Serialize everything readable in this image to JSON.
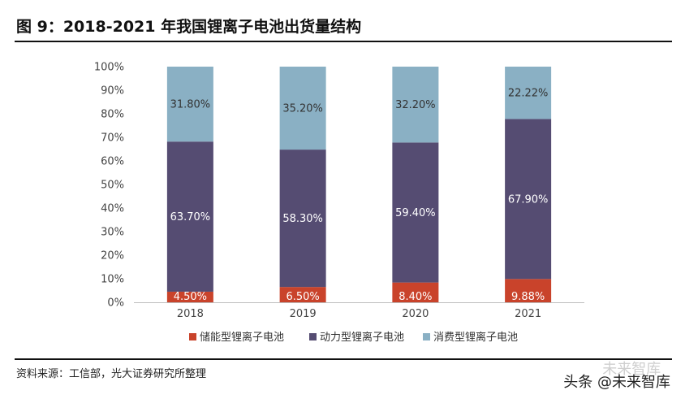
{
  "header": {
    "title": "图 9：2018-2021 年我国锂离子电池出货量结构"
  },
  "footer": {
    "source": "资料来源：工信部，光大证券研究所整理",
    "watermark": "头条 @未来智库",
    "watermark_ghost": "未来智库"
  },
  "chart_data": {
    "type": "bar",
    "stacked": true,
    "categories": [
      "2018",
      "2019",
      "2020",
      "2021"
    ],
    "series": [
      {
        "name": "储能型锂离子电池",
        "values": [
          4.5,
          6.5,
          8.4,
          9.88
        ],
        "labels": [
          "4.50%",
          "6.50%",
          "8.40%",
          "9.88%"
        ],
        "color": "#c9432b",
        "label_color": "#ffffff"
      },
      {
        "name": "动力型锂离子电池",
        "values": [
          63.7,
          58.3,
          59.4,
          67.9
        ],
        "labels": [
          "63.70%",
          "58.30%",
          "59.40%",
          "67.90%"
        ],
        "color": "#554c72",
        "label_color": "#ffffff"
      },
      {
        "name": "消费型锂离子电池",
        "values": [
          31.8,
          35.2,
          32.2,
          22.22
        ],
        "labels": [
          "31.80%",
          "35.20%",
          "32.20%",
          "22.22%"
        ],
        "color": "#8ab0c4",
        "label_color": "#333333"
      }
    ],
    "y_ticks": [
      "0%",
      "10%",
      "20%",
      "30%",
      "40%",
      "50%",
      "60%",
      "70%",
      "80%",
      "90%",
      "100%"
    ],
    "ylim": [
      0,
      100
    ],
    "legend": "bottom-center"
  }
}
